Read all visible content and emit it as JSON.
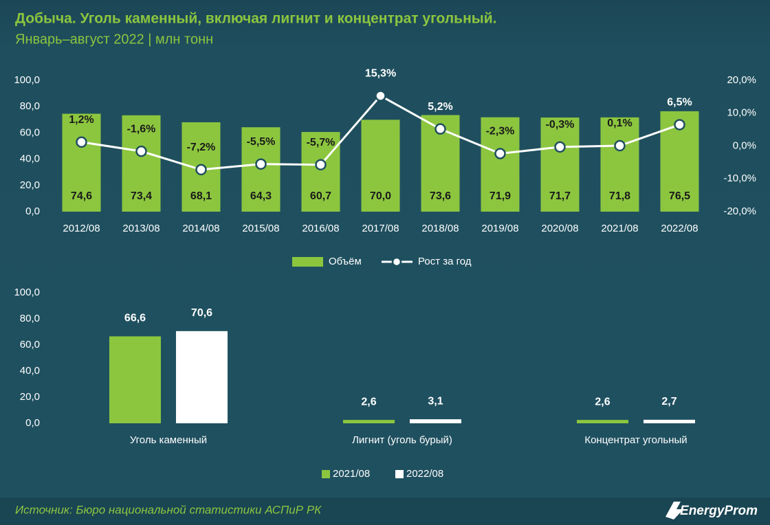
{
  "header": {
    "title": "Добыча. Уголь каменный, включая лигнит и концентрат угольный.",
    "subtitle": "Январь–август 2022 | млн тонн"
  },
  "chart_data": [
    {
      "type": "bar-line",
      "categories": [
        "2012/08",
        "2013/08",
        "2014/08",
        "2015/08",
        "2016/08",
        "2017/08",
        "2018/08",
        "2019/08",
        "2020/08",
        "2021/08",
        "2022/08"
      ],
      "series": [
        {
          "name": "Объём",
          "type": "bar",
          "color": "#8cc63f",
          "values": [
            74.6,
            73.4,
            68.1,
            64.3,
            60.7,
            70.0,
            73.6,
            71.9,
            71.7,
            71.8,
            76.5
          ],
          "value_labels": [
            "74,6",
            "73,4",
            "68,1",
            "64,3",
            "60,7",
            "70,0",
            "73,6",
            "71,9",
            "71,7",
            "71,8",
            "76,5"
          ]
        },
        {
          "name": "Рост за год",
          "type": "line",
          "axis": "y2",
          "color": "#ffffff",
          "values": [
            1.2,
            -1.6,
            -7.2,
            -5.5,
            -5.7,
            15.3,
            5.2,
            -2.3,
            -0.3,
            0.1,
            6.5
          ],
          "value_labels": [
            "1,2%",
            "-1,6%",
            "-7,2%",
            "-5,5%",
            "-5,7%",
            "15,3%",
            "5,2%",
            "-2,3%",
            "-0,3%",
            "0,1%",
            "6,5%"
          ]
        }
      ],
      "ylim": [
        0,
        100
      ],
      "yticks": [
        {
          "value": 0,
          "label": "0,0"
        },
        {
          "value": 20,
          "label": "20,0"
        },
        {
          "value": 40,
          "label": "40,0"
        },
        {
          "value": 60,
          "label": "60,0"
        },
        {
          "value": 80,
          "label": "80,0"
        },
        {
          "value": 100,
          "label": "100,0"
        }
      ],
      "y2lim": [
        -20,
        20
      ],
      "y2ticks": [
        {
          "value": -20,
          "label": "-20,0%"
        },
        {
          "value": -10,
          "label": "-10,0%"
        },
        {
          "value": 0,
          "label": "0,0%"
        },
        {
          "value": 10,
          "label": "10,0%"
        },
        {
          "value": 20,
          "label": "20,0%"
        }
      ],
      "grid": false
    },
    {
      "type": "bar",
      "categories": [
        "Уголь каменный",
        "Лигнит (уголь бурый)",
        "Концентрат угольный"
      ],
      "series": [
        {
          "name": "2021/08",
          "color": "#8cc63f",
          "values": [
            66.6,
            2.6,
            2.6
          ],
          "value_labels": [
            "66,6",
            "2,6",
            "2,6"
          ]
        },
        {
          "name": "2022/08",
          "color": "#ffffff",
          "values": [
            70.6,
            3.1,
            2.7
          ],
          "value_labels": [
            "70,6",
            "3,1",
            "2,7"
          ]
        }
      ],
      "ylim": [
        0,
        100
      ],
      "yticks": [
        {
          "value": 0,
          "label": "0,0"
        },
        {
          "value": 20,
          "label": "20,0"
        },
        {
          "value": 40,
          "label": "40,0"
        },
        {
          "value": 60,
          "label": "60,0"
        },
        {
          "value": 80,
          "label": "80,0"
        },
        {
          "value": 100,
          "label": "100,0"
        }
      ],
      "grid": false
    }
  ],
  "footer": {
    "source": "Источник: Бюро национальной статистики АСПиР РК",
    "logo": "EnergyProm"
  }
}
